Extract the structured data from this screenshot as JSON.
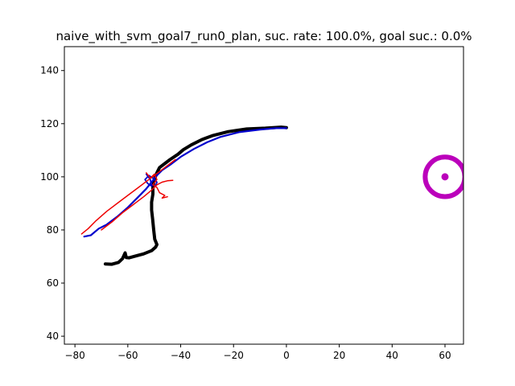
{
  "chart_data": {
    "type": "line",
    "title": "naive_with_svm_goal7_run0_plan, suc. rate: 100.0%, goal suc.: 0.0%",
    "xlabel": "",
    "ylabel": "",
    "xlim": [
      -84,
      67
    ],
    "ylim": [
      37,
      149
    ],
    "x_ticks": [
      -80,
      -60,
      -40,
      -20,
      0,
      20,
      40,
      60
    ],
    "x_tick_labels": [
      "−80",
      "−60",
      "−40",
      "−20",
      "0",
      "20",
      "40",
      "60"
    ],
    "y_ticks": [
      40,
      60,
      80,
      100,
      120,
      140
    ],
    "y_tick_labels": [
      "40",
      "60",
      "80",
      "100",
      "120",
      "140"
    ],
    "grid": false,
    "legend": "none",
    "series": [
      {
        "color": "#000000",
        "role": "executed trajectory",
        "points": [
          [
            -68.5,
            67.2
          ],
          [
            -66,
            67.1
          ],
          [
            -63.5,
            67.8
          ],
          [
            -62,
            69.2
          ],
          [
            -61,
            71.4
          ],
          [
            -60.6,
            69.6
          ],
          [
            -59.5,
            69.5
          ],
          [
            -57,
            70.2
          ],
          [
            -54,
            71
          ],
          [
            -51,
            72.2
          ],
          [
            -49.5,
            73.5
          ],
          [
            -49,
            74.5
          ],
          [
            -49.8,
            76.5
          ],
          [
            -50.2,
            80
          ],
          [
            -50.6,
            84
          ],
          [
            -51,
            87.5
          ],
          [
            -51,
            90.5
          ],
          [
            -50.5,
            93.5
          ],
          [
            -50.5,
            96
          ],
          [
            -50,
            99
          ],
          [
            -49,
            101.5
          ],
          [
            -48,
            103.5
          ],
          [
            -46,
            105
          ],
          [
            -44,
            106.5
          ],
          [
            -41,
            108.5
          ],
          [
            -39,
            110.2
          ],
          [
            -36,
            112
          ],
          [
            -32,
            114
          ],
          [
            -28,
            115.5
          ],
          [
            -22,
            117
          ],
          [
            -15,
            118
          ],
          [
            -8,
            118.3
          ],
          [
            -2,
            118.7
          ],
          [
            0,
            118.5
          ]
        ]
      },
      {
        "color": "#0000cc",
        "role": "planned path",
        "points": [
          [
            -76.5,
            77.5
          ],
          [
            -74,
            78
          ],
          [
            -71,
            80.5
          ],
          [
            -68,
            82
          ],
          [
            -64,
            85
          ],
          [
            -60,
            88.5
          ],
          [
            -56,
            92.5
          ],
          [
            -53,
            95.5
          ],
          [
            -51,
            98
          ],
          [
            -49.5,
            100
          ],
          [
            -47,
            102.5
          ],
          [
            -44,
            104.5
          ],
          [
            -40,
            107.5
          ],
          [
            -35,
            110.5
          ],
          [
            -30,
            113
          ],
          [
            -25,
            115
          ],
          [
            -18,
            116.8
          ],
          [
            -10,
            117.8
          ],
          [
            -4,
            118.3
          ],
          [
            0,
            118.3
          ]
        ]
      },
      {
        "color": "#0000cc",
        "role": "planned loop",
        "points": [
          [
            -53,
            101
          ],
          [
            -51.5,
            99
          ],
          [
            -51,
            96.5
          ],
          [
            -52.5,
            97.5
          ],
          [
            -53.5,
            99
          ],
          [
            -52,
            100.5
          ],
          [
            -50.5,
            99.5
          ],
          [
            -49,
            98
          ],
          [
            -49.5,
            96.5
          ],
          [
            -51,
            97
          ]
        ]
      },
      {
        "color": "#ee0000",
        "role": "svm boundary upper",
        "points": [
          [
            -77.5,
            78.5
          ],
          [
            -75,
            80.5
          ],
          [
            -72,
            83.5
          ],
          [
            -68,
            87
          ],
          [
            -64,
            90
          ],
          [
            -60,
            93
          ],
          [
            -56,
            96
          ],
          [
            -52,
            99
          ],
          [
            -48,
            102
          ],
          [
            -44,
            105
          ],
          [
            -42,
            106.5
          ]
        ]
      },
      {
        "color": "#ee0000",
        "role": "svm boundary lower",
        "points": [
          [
            -70,
            80
          ],
          [
            -66,
            83
          ],
          [
            -62,
            86.5
          ],
          [
            -58,
            89.5
          ],
          [
            -54,
            92.5
          ],
          [
            -51,
            95
          ],
          [
            -49,
            97
          ],
          [
            -47,
            98
          ],
          [
            -45,
            98.5
          ],
          [
            -43,
            98.7
          ]
        ]
      },
      {
        "color": "#ee0000",
        "role": "svm squiggle",
        "points": [
          [
            -53,
            101.5
          ],
          [
            -51.5,
            99.5
          ],
          [
            -50,
            101
          ],
          [
            -49,
            99
          ],
          [
            -50.5,
            97
          ],
          [
            -49,
            96
          ],
          [
            -48,
            94
          ],
          [
            -46,
            93
          ],
          [
            -47,
            92
          ],
          [
            -45,
            92.5
          ]
        ]
      }
    ],
    "goal": {
      "x": 60,
      "y": 100,
      "radius": 7.5,
      "color": "#bb00bb"
    }
  }
}
